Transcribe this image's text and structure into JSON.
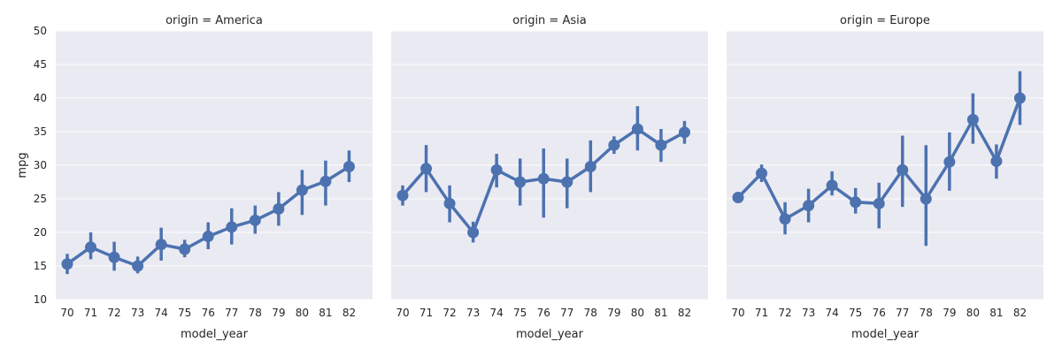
{
  "chart_data": {
    "type": "line",
    "style": "point-plot-with-error-bars",
    "background": "#EAEAF2",
    "grid": true,
    "series_color": "#4C72B0",
    "x": [
      "70",
      "71",
      "72",
      "73",
      "74",
      "75",
      "76",
      "77",
      "78",
      "79",
      "80",
      "81",
      "82"
    ],
    "xlabel": "model_year",
    "ylabel": "mpg",
    "ylim": [
      10,
      50
    ],
    "yticks": [
      "10",
      "15",
      "20",
      "25",
      "30",
      "35",
      "40",
      "45",
      "50"
    ],
    "facets": [
      {
        "title": "origin = America",
        "mean": [
          15.3,
          17.8,
          16.3,
          15.0,
          18.2,
          17.5,
          19.4,
          20.8,
          21.8,
          23.5,
          26.3,
          27.6,
          29.8
        ],
        "ci_low": [
          13.8,
          16.0,
          14.3,
          13.9,
          15.8,
          16.3,
          17.5,
          18.2,
          19.8,
          21.0,
          22.6,
          24.0,
          27.5
        ],
        "ci_high": [
          16.8,
          20.0,
          18.6,
          16.4,
          20.7,
          18.9,
          21.5,
          23.6,
          24.0,
          26.0,
          29.3,
          30.7,
          32.2
        ]
      },
      {
        "title": "origin = Asia",
        "mean": [
          25.5,
          29.5,
          24.3,
          20.0,
          29.3,
          27.5,
          28.0,
          27.5,
          29.8,
          33.0,
          35.4,
          33.0,
          34.9
        ],
        "ci_low": [
          24.0,
          26.0,
          21.5,
          18.5,
          26.7,
          24.0,
          22.2,
          23.6,
          26.0,
          31.7,
          32.2,
          30.5,
          33.2
        ],
        "ci_high": [
          27.0,
          33.0,
          27.0,
          21.6,
          31.7,
          31.0,
          32.5,
          31.0,
          33.7,
          34.3,
          38.8,
          35.4,
          36.6
        ]
      },
      {
        "title": "origin = Europe",
        "mean": [
          25.2,
          28.8,
          22.0,
          24.0,
          27.0,
          24.5,
          24.3,
          29.3,
          25.0,
          30.5,
          36.8,
          30.6,
          40.0
        ],
        "ci_low": [
          24.5,
          27.5,
          19.7,
          21.5,
          25.5,
          22.8,
          20.6,
          23.8,
          18.0,
          26.2,
          33.2,
          28.0,
          36.0
        ],
        "ci_high": [
          25.9,
          30.1,
          24.5,
          26.5,
          29.1,
          26.6,
          27.4,
          34.4,
          33.0,
          34.9,
          40.7,
          33.1,
          44.0
        ]
      }
    ]
  }
}
